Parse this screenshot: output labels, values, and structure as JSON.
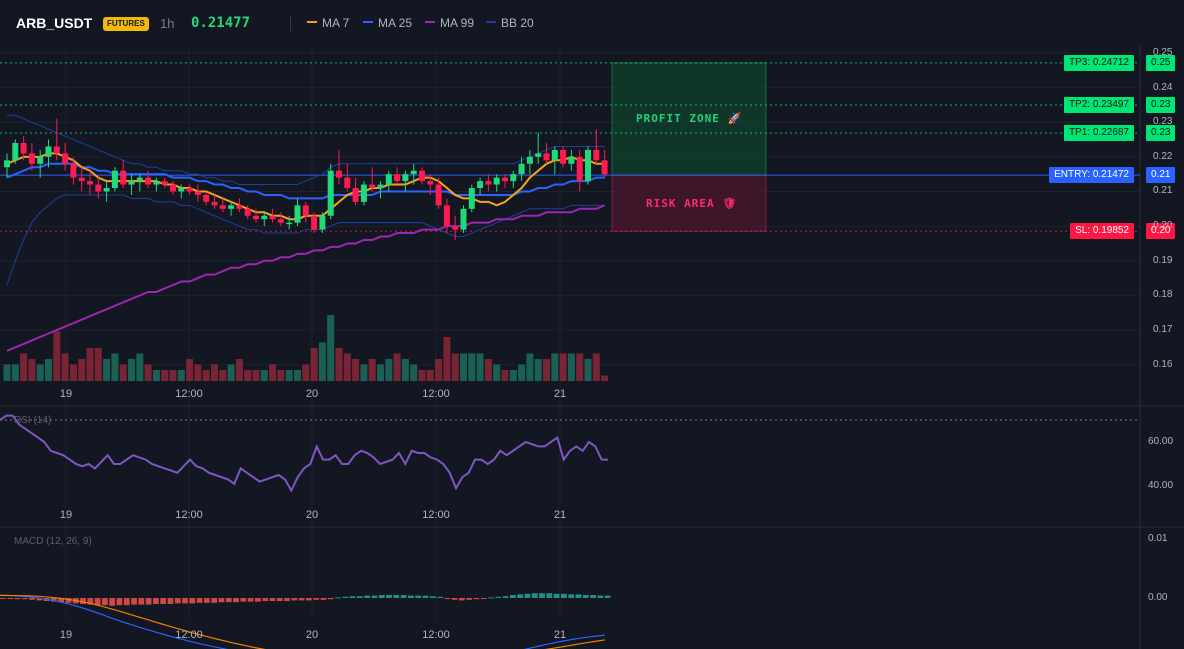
{
  "header": {
    "symbol": "ARB_USDT",
    "badge": "FUTURES",
    "timeframe": "1h",
    "last_price": "0.21477"
  },
  "legend": [
    {
      "label": "MA 7",
      "color": "#f7a21b"
    },
    {
      "label": "MA 25",
      "color": "#2962ff"
    },
    {
      "label": "MA 99",
      "color": "#9c27b0"
    },
    {
      "label": "BB 20",
      "color": "#1e3fa0"
    }
  ],
  "levels": {
    "tp3": {
      "label": "TP3: 0.24712",
      "value": 0.24712,
      "axis": "0.25",
      "color": "#00e676"
    },
    "tp2": {
      "label": "TP2: 0.23497",
      "value": 0.23497,
      "axis": "0.23",
      "color": "#00e676"
    },
    "tp1": {
      "label": "TP1: 0.22687",
      "value": 0.22687,
      "axis": "0.23",
      "color": "#00e676"
    },
    "entry": {
      "label": "ENTRY: 0.21472",
      "value": 0.21472,
      "axis": "0.21",
      "color": "#2962ff"
    },
    "sl": {
      "label": "SL: 0.19852",
      "value": 0.19852,
      "axis": "0.20",
      "color": "#ff1744"
    }
  },
  "zones": {
    "profit": "PROFIT ZONE 🚀",
    "risk": "RISK AREA 🛡"
  },
  "price_axis": {
    "ticks": [
      "0.25",
      "0.24",
      "0.23",
      "0.22",
      "0.21",
      "0.20",
      "0.19",
      "0.18",
      "0.17",
      "0.16"
    ],
    "tick_values": [
      0.25,
      0.24,
      0.23,
      0.22,
      0.21,
      0.2,
      0.19,
      0.18,
      0.17,
      0.16
    ]
  },
  "time_axis": [
    "19",
    "12:00",
    "20",
    "12:00",
    "21"
  ],
  "rsi": {
    "title": "RSI (14)",
    "ticks": [
      "60.00",
      "40.00"
    ],
    "tick_values": [
      60,
      40
    ],
    "values": [
      70,
      72,
      72,
      68,
      66,
      64,
      62,
      60,
      56,
      55,
      54,
      52,
      50,
      49,
      50,
      48,
      51,
      54,
      50,
      50,
      52,
      54,
      53,
      52,
      50,
      49,
      48,
      47,
      46,
      49,
      52,
      49,
      48,
      46,
      45,
      44,
      43,
      41,
      48,
      46,
      44,
      42,
      43,
      44,
      45,
      43,
      38,
      44,
      48,
      50,
      58,
      52,
      52,
      54,
      50,
      50,
      54,
      56,
      55,
      53,
      50,
      51,
      52,
      55,
      50,
      56,
      55,
      55,
      53,
      52,
      50,
      46,
      39,
      44,
      46,
      52,
      52,
      50,
      52,
      56,
      54,
      56,
      58,
      60,
      59,
      58,
      58,
      60,
      62,
      52,
      56,
      58,
      56,
      60,
      58,
      52,
      52
    ]
  },
  "macd": {
    "title": "MACD (12, 26, 9)",
    "ticks": [
      "0.01",
      "0.00"
    ],
    "tick_values": [
      0.01,
      0.0
    ],
    "histogram": [
      -0.0001,
      -0.0001,
      -0.0002,
      -0.0002,
      -0.0003,
      -0.0004,
      -0.0005,
      -0.0006,
      -0.0007,
      -0.0008,
      -0.0009,
      -0.001,
      -0.0011,
      -0.0012,
      -0.0012,
      -0.0013,
      -0.0012,
      -0.0012,
      -0.0011,
      -0.0011,
      -0.0011,
      -0.001,
      -0.001,
      -0.001,
      -0.0009,
      -0.0009,
      -0.0009,
      -0.0008,
      -0.0008,
      -0.0008,
      -0.0007,
      -0.0007,
      -0.0007,
      -0.0006,
      -0.0006,
      -0.0006,
      -0.0005,
      -0.0005,
      -0.0005,
      -0.0005,
      -0.0004,
      -0.0004,
      -0.0004,
      -0.0003,
      -0.0003,
      -0.0002,
      0.0001,
      0.0002,
      0.0003,
      0.0003,
      0.0004,
      0.0004,
      0.0005,
      0.0005,
      0.0005,
      0.0005,
      0.0004,
      0.0004,
      0.0004,
      0.0003,
      0.0002,
      -0.0001,
      -0.0003,
      -0.0004,
      -0.0003,
      -0.0002,
      -0.0001,
      0.0001,
      0.0002,
      0.0003,
      0.0005,
      0.0006,
      0.0007,
      0.0008,
      0.0008,
      0.0008,
      0.0007,
      0.0007,
      0.0006,
      0.0006,
      0.0005,
      0.0005,
      0.0004,
      0.0004
    ]
  },
  "chart_data": {
    "type": "candlestick",
    "symbol": "ARB_USDT",
    "interval": "1h",
    "ylim": [
      0.155,
      0.252
    ],
    "candles": [
      [
        0.217,
        0.221,
        0.214,
        0.219
      ],
      [
        0.219,
        0.225,
        0.218,
        0.224
      ],
      [
        0.224,
        0.226,
        0.219,
        0.221
      ],
      [
        0.221,
        0.224,
        0.216,
        0.218
      ],
      [
        0.218,
        0.222,
        0.214,
        0.22
      ],
      [
        0.22,
        0.225,
        0.217,
        0.223
      ],
      [
        0.223,
        0.231,
        0.219,
        0.221
      ],
      [
        0.221,
        0.224,
        0.216,
        0.218
      ],
      [
        0.218,
        0.22,
        0.212,
        0.214
      ],
      [
        0.214,
        0.217,
        0.21,
        0.213
      ],
      [
        0.213,
        0.216,
        0.209,
        0.212
      ],
      [
        0.212,
        0.214,
        0.208,
        0.21
      ],
      [
        0.21,
        0.213,
        0.207,
        0.211
      ],
      [
        0.211,
        0.217,
        0.21,
        0.216
      ],
      [
        0.216,
        0.219,
        0.211,
        0.212
      ],
      [
        0.212,
        0.215,
        0.209,
        0.213
      ],
      [
        0.213,
        0.215,
        0.21,
        0.214
      ],
      [
        0.214,
        0.216,
        0.211,
        0.212
      ],
      [
        0.212,
        0.214,
        0.21,
        0.213
      ],
      [
        0.213,
        0.214,
        0.211,
        0.212
      ],
      [
        0.212,
        0.213,
        0.209,
        0.21
      ],
      [
        0.21,
        0.212,
        0.208,
        0.211
      ],
      [
        0.211,
        0.212,
        0.209,
        0.21
      ],
      [
        0.21,
        0.212,
        0.207,
        0.209
      ],
      [
        0.209,
        0.21,
        0.206,
        0.207
      ],
      [
        0.207,
        0.209,
        0.205,
        0.206
      ],
      [
        0.206,
        0.208,
        0.204,
        0.205
      ],
      [
        0.205,
        0.207,
        0.203,
        0.206
      ],
      [
        0.206,
        0.208,
        0.204,
        0.205
      ],
      [
        0.205,
        0.206,
        0.202,
        0.203
      ],
      [
        0.203,
        0.205,
        0.201,
        0.202
      ],
      [
        0.202,
        0.204,
        0.2,
        0.203
      ],
      [
        0.203,
        0.205,
        0.201,
        0.202
      ],
      [
        0.202,
        0.204,
        0.2,
        0.201
      ],
      [
        0.201,
        0.203,
        0.199,
        0.201
      ],
      [
        0.201,
        0.208,
        0.2,
        0.206
      ],
      [
        0.206,
        0.207,
        0.201,
        0.203
      ],
      [
        0.203,
        0.204,
        0.198,
        0.199
      ],
      [
        0.199,
        0.204,
        0.198,
        0.203
      ],
      [
        0.203,
        0.218,
        0.202,
        0.216
      ],
      [
        0.216,
        0.222,
        0.212,
        0.214
      ],
      [
        0.214,
        0.218,
        0.21,
        0.211
      ],
      [
        0.211,
        0.214,
        0.206,
        0.207
      ],
      [
        0.207,
        0.213,
        0.206,
        0.212
      ],
      [
        0.212,
        0.217,
        0.21,
        0.211
      ],
      [
        0.211,
        0.213,
        0.208,
        0.212
      ],
      [
        0.212,
        0.216,
        0.21,
        0.215
      ],
      [
        0.215,
        0.217,
        0.212,
        0.213
      ],
      [
        0.213,
        0.216,
        0.21,
        0.215
      ],
      [
        0.215,
        0.218,
        0.212,
        0.216
      ],
      [
        0.216,
        0.217,
        0.212,
        0.213
      ],
      [
        0.213,
        0.215,
        0.209,
        0.212
      ],
      [
        0.212,
        0.214,
        0.205,
        0.206
      ],
      [
        0.206,
        0.208,
        0.198,
        0.2
      ],
      [
        0.2,
        0.203,
        0.196,
        0.199
      ],
      [
        0.199,
        0.206,
        0.198,
        0.205
      ],
      [
        0.205,
        0.212,
        0.204,
        0.211
      ],
      [
        0.211,
        0.214,
        0.209,
        0.213
      ],
      [
        0.213,
        0.215,
        0.21,
        0.212
      ],
      [
        0.212,
        0.215,
        0.21,
        0.214
      ],
      [
        0.214,
        0.215,
        0.211,
        0.213
      ],
      [
        0.213,
        0.216,
        0.211,
        0.215
      ],
      [
        0.215,
        0.22,
        0.213,
        0.218
      ],
      [
        0.218,
        0.222,
        0.215,
        0.22
      ],
      [
        0.22,
        0.227,
        0.218,
        0.221
      ],
      [
        0.221,
        0.224,
        0.218,
        0.219
      ],
      [
        0.219,
        0.223,
        0.215,
        0.222
      ],
      [
        0.222,
        0.223,
        0.217,
        0.218
      ],
      [
        0.218,
        0.222,
        0.216,
        0.22
      ],
      [
        0.22,
        0.222,
        0.21,
        0.213
      ],
      [
        0.213,
        0.223,
        0.212,
        0.222
      ],
      [
        0.222,
        0.228,
        0.218,
        0.219
      ],
      [
        0.219,
        0.222,
        0.214,
        0.215
      ]
    ],
    "ma7": [
      0.218,
      0.219,
      0.22,
      0.22,
      0.22,
      0.221,
      0.221,
      0.22,
      0.219,
      0.217,
      0.216,
      0.214,
      0.213,
      0.213,
      0.213,
      0.213,
      0.213,
      0.213,
      0.213,
      0.212,
      0.212,
      0.211,
      0.211,
      0.21,
      0.21,
      0.209,
      0.208,
      0.207,
      0.206,
      0.205,
      0.204,
      0.204,
      0.203,
      0.203,
      0.202,
      0.202,
      0.203,
      0.203,
      0.203,
      0.205,
      0.207,
      0.209,
      0.21,
      0.21,
      0.211,
      0.211,
      0.212,
      0.212,
      0.212,
      0.213,
      0.214,
      0.214,
      0.213,
      0.211,
      0.209,
      0.208,
      0.208,
      0.207,
      0.207,
      0.206,
      0.207,
      0.209,
      0.211,
      0.214,
      0.216,
      0.218,
      0.219,
      0.219,
      0.22,
      0.219,
      0.219,
      0.218,
      0.218
    ],
    "ma25": [
      0.214,
      0.215,
      0.216,
      0.217,
      0.217,
      0.218,
      0.218,
      0.218,
      0.218,
      0.217,
      0.217,
      0.216,
      0.216,
      0.215,
      0.215,
      0.215,
      0.215,
      0.215,
      0.215,
      0.215,
      0.214,
      0.214,
      0.214,
      0.213,
      0.213,
      0.212,
      0.212,
      0.211,
      0.211,
      0.21,
      0.21,
      0.209,
      0.209,
      0.209,
      0.208,
      0.208,
      0.208,
      0.208,
      0.208,
      0.209,
      0.209,
      0.209,
      0.209,
      0.209,
      0.209,
      0.21,
      0.21,
      0.21,
      0.21,
      0.21,
      0.21,
      0.21,
      0.21,
      0.21,
      0.209,
      0.209,
      0.209,
      0.209,
      0.209,
      0.209,
      0.209,
      0.209,
      0.21,
      0.21,
      0.211,
      0.211,
      0.212,
      0.212,
      0.213,
      0.213,
      0.213,
      0.214,
      0.214
    ],
    "ma99": [
      0.164,
      0.165,
      0.166,
      0.167,
      0.168,
      0.169,
      0.17,
      0.171,
      0.172,
      0.173,
      0.174,
      0.175,
      0.176,
      0.177,
      0.178,
      0.179,
      0.18,
      0.181,
      0.181,
      0.182,
      0.183,
      0.184,
      0.184,
      0.185,
      0.186,
      0.186,
      0.187,
      0.188,
      0.188,
      0.189,
      0.189,
      0.19,
      0.19,
      0.191,
      0.191,
      0.192,
      0.192,
      0.193,
      0.193,
      0.194,
      0.194,
      0.195,
      0.195,
      0.196,
      0.196,
      0.197,
      0.197,
      0.198,
      0.198,
      0.198,
      0.199,
      0.199,
      0.199,
      0.2,
      0.2,
      0.2,
      0.201,
      0.201,
      0.201,
      0.202,
      0.202,
      0.202,
      0.203,
      0.203,
      0.203,
      0.204,
      0.204,
      0.204,
      0.204,
      0.205,
      0.205,
      0.205,
      0.206
    ],
    "bb_upper": [
      0.232,
      0.232,
      0.231,
      0.23,
      0.229,
      0.228,
      0.227,
      0.226,
      0.225,
      0.224,
      0.223,
      0.222,
      0.221,
      0.22,
      0.219,
      0.218,
      0.218,
      0.217,
      0.217,
      0.216,
      0.216,
      0.216,
      0.215,
      0.215,
      0.214,
      0.214,
      0.213,
      0.213,
      0.212,
      0.212,
      0.212,
      0.212,
      0.212,
      0.212,
      0.212,
      0.212,
      0.213,
      0.214,
      0.215,
      0.217,
      0.218,
      0.218,
      0.218,
      0.218,
      0.218,
      0.218,
      0.218,
      0.218,
      0.218,
      0.218,
      0.218,
      0.218,
      0.218,
      0.218,
      0.218,
      0.218,
      0.218,
      0.218,
      0.218,
      0.218,
      0.218,
      0.218,
      0.219,
      0.22,
      0.221,
      0.222,
      0.223,
      0.223,
      0.223,
      0.223,
      0.223,
      0.223,
      0.223
    ],
    "bb_lower": [
      0.183,
      0.19,
      0.196,
      0.201,
      0.204,
      0.206,
      0.208,
      0.209,
      0.209,
      0.209,
      0.209,
      0.209,
      0.209,
      0.209,
      0.209,
      0.208,
      0.208,
      0.208,
      0.207,
      0.207,
      0.207,
      0.206,
      0.206,
      0.205,
      0.204,
      0.203,
      0.202,
      0.201,
      0.2,
      0.199,
      0.199,
      0.198,
      0.198,
      0.198,
      0.198,
      0.198,
      0.199,
      0.199,
      0.199,
      0.2,
      0.201,
      0.201,
      0.201,
      0.201,
      0.201,
      0.201,
      0.201,
      0.201,
      0.201,
      0.201,
      0.201,
      0.2,
      0.199,
      0.198,
      0.197,
      0.197,
      0.198,
      0.199,
      0.2,
      0.201,
      0.202,
      0.203,
      0.204,
      0.205,
      0.205,
      0.205,
      0.205,
      0.205,
      0.206,
      0.206,
      0.206,
      0.206,
      0.206
    ],
    "volume": [
      3,
      3,
      5,
      4,
      3,
      4,
      9,
      5,
      3,
      4,
      6,
      6,
      4,
      5,
      3,
      4,
      5,
      3,
      2,
      2,
      2,
      2,
      4,
      3,
      2,
      3,
      2,
      3,
      4,
      2,
      2,
      2,
      3,
      2,
      2,
      2,
      3,
      6,
      7,
      12,
      6,
      5,
      4,
      3,
      4,
      3,
      4,
      5,
      4,
      3,
      2,
      2,
      4,
      8,
      5,
      5,
      5,
      5,
      4,
      3,
      2,
      2,
      3,
      5,
      4,
      4,
      5,
      5,
      5,
      5,
      4,
      5,
      1
    ]
  }
}
